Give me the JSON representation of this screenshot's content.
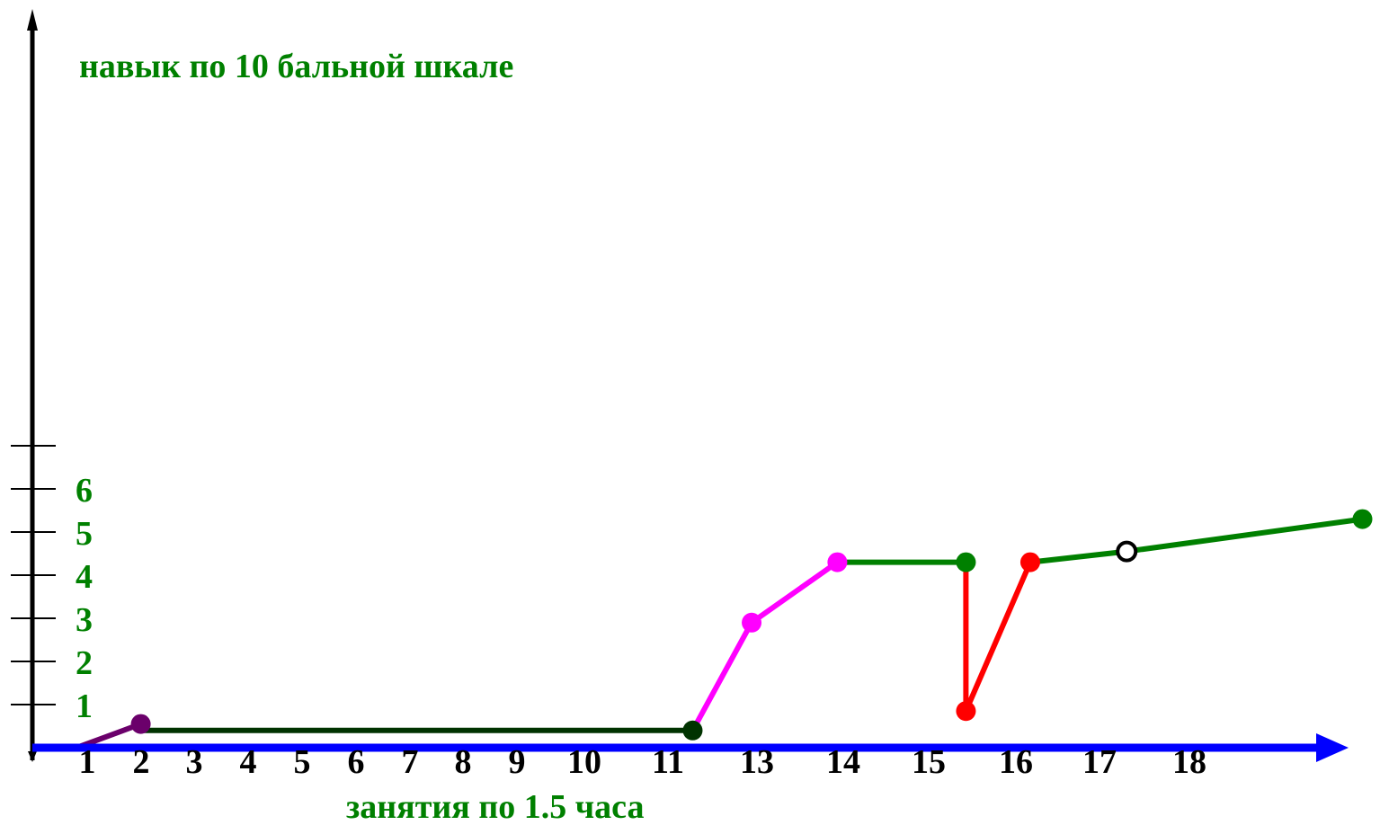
{
  "chart_data": {
    "type": "line",
    "ylabel": "навык по 10 бальной шкале",
    "xlabel": "занятия по 1.5 часа",
    "x_tick_labels": [
      "1",
      "2",
      "3",
      "4",
      "5",
      "6",
      "7",
      "8",
      "9",
      "10",
      "11",
      "13",
      "14",
      "15",
      "16",
      "17",
      "18"
    ],
    "y_tick_labels": [
      "1",
      "2",
      "3",
      "4",
      "5",
      "6"
    ],
    "y_tick_count": 10,
    "ylim": [
      0,
      10
    ],
    "colors": {
      "y_axis": "#000000",
      "x_axis": "#0000ff",
      "label_text": "#008000",
      "tick_text": "#000000"
    },
    "segments": [
      {
        "color": "#6b006b",
        "points": [
          [
            0.8,
            0.0
          ],
          [
            2.0,
            0.55
          ]
        ],
        "markers": [
          [
            2.0,
            0.55,
            "filled"
          ]
        ]
      },
      {
        "color": "#003300",
        "points": [
          [
            2.0,
            0.4
          ],
          [
            12.3,
            0.4
          ]
        ],
        "markers": [
          [
            12.3,
            0.4,
            "filled"
          ]
        ]
      },
      {
        "color": "#ff00ff",
        "points": [
          [
            12.3,
            0.4
          ],
          [
            13.4,
            2.9
          ],
          [
            15.0,
            4.3
          ]
        ],
        "markers": [
          [
            13.4,
            2.9,
            "filled"
          ],
          [
            15.0,
            4.3,
            "filled"
          ]
        ]
      },
      {
        "color": "#008000",
        "points": [
          [
            15.0,
            4.3
          ],
          [
            17.4,
            4.3
          ]
        ],
        "markers": [
          [
            17.4,
            4.3,
            "filled"
          ]
        ]
      },
      {
        "color": "#ff0000",
        "points": [
          [
            17.4,
            4.3
          ],
          [
            17.4,
            0.85
          ],
          [
            18.6,
            4.3
          ]
        ],
        "markers": [
          [
            17.4,
            0.85,
            "filled"
          ],
          [
            18.6,
            4.3,
            "filled"
          ]
        ]
      },
      {
        "color": "#008000",
        "points": [
          [
            18.6,
            4.3
          ],
          [
            20.4,
            4.55
          ],
          [
            24.8,
            5.3
          ]
        ],
        "markers": [
          [
            20.4,
            4.55,
            "hollow"
          ],
          [
            24.8,
            5.3,
            "filled"
          ]
        ]
      }
    ]
  }
}
